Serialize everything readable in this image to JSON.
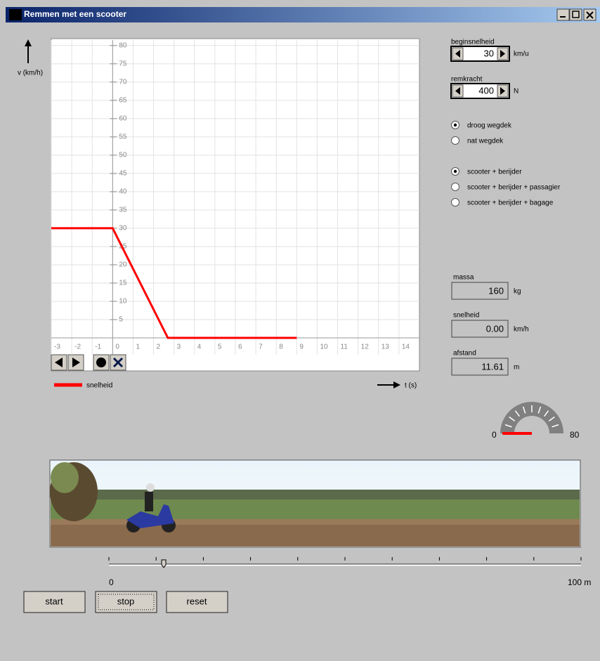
{
  "window": {
    "title": "Remmen met een scooter"
  },
  "chart_data": {
    "type": "line",
    "y_label": "v (km/h)",
    "x_label": "t (s)",
    "x": [
      -3,
      0,
      2.7,
      9
    ],
    "series": [
      {
        "name": "snelheid",
        "color": "#ff0000",
        "values": [
          30,
          30,
          0,
          0
        ]
      }
    ],
    "xlim": [
      -3,
      15
    ],
    "ylim": [
      0,
      81.5
    ],
    "xticks": [
      -3,
      -2,
      -1,
      0,
      1,
      2,
      3,
      4,
      5,
      6,
      7,
      8,
      9,
      10,
      11,
      12,
      13,
      14
    ],
    "yticks": [
      5,
      10,
      15,
      20,
      25,
      30,
      35,
      40,
      45,
      50,
      55,
      60,
      65,
      70,
      75,
      80
    ],
    "grid": true
  },
  "inputs": {
    "beginsnelheid": {
      "label": "beginsnelheid",
      "value": "30",
      "unit": "km/u"
    },
    "remkracht": {
      "label": "remkracht",
      "value": "400",
      "unit": "N"
    }
  },
  "wegdek": {
    "options": [
      "droog wegdek",
      "nat wegdek"
    ],
    "selected": 0
  },
  "belading": {
    "options": [
      "scooter + berijder",
      "scooter + berijder + passagier",
      "scooter + berijder + bagage"
    ],
    "selected": 0
  },
  "outputs": [
    {
      "label": "massa",
      "value": "160",
      "unit": "kg"
    },
    {
      "label": "snelheid",
      "value": "0.00",
      "unit": "km/h"
    },
    {
      "label": "afstand",
      "value": "11.61",
      "unit": "m"
    }
  ],
  "gauge": {
    "min": 0,
    "max": 80,
    "value": 0
  },
  "slider": {
    "min": 0,
    "max": {
      "value": 100,
      "label": "100 m"
    },
    "position": 11.61
  },
  "buttons": [
    "start",
    "stop",
    "reset"
  ]
}
